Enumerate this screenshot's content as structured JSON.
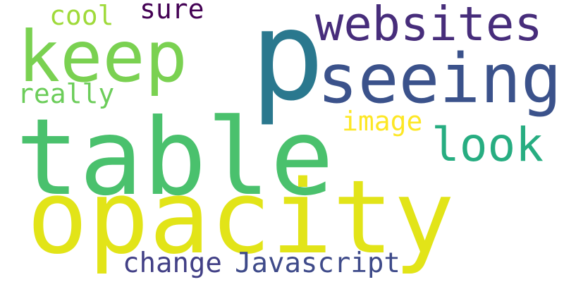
{
  "words": [
    {
      "text": "p",
      "color": "#2a788e"
    },
    {
      "text": "table",
      "color": "#4ac16d"
    },
    {
      "text": "opacity",
      "color": "#e2e418"
    },
    {
      "text": "keep",
      "color": "#7ad151"
    },
    {
      "text": "seeing",
      "color": "#3b528b"
    },
    {
      "text": "websites",
      "color": "#472d7b"
    },
    {
      "text": "look",
      "color": "#27ad81"
    },
    {
      "text": "Javascript",
      "color": "#3e4a89"
    },
    {
      "text": "change",
      "color": "#424086"
    },
    {
      "text": "really",
      "color": "#6ccd5a"
    },
    {
      "text": "image",
      "color": "#fde725"
    },
    {
      "text": "cool",
      "color": "#9fda3a"
    },
    {
      "text": "sure",
      "color": "#440154"
    }
  ]
}
